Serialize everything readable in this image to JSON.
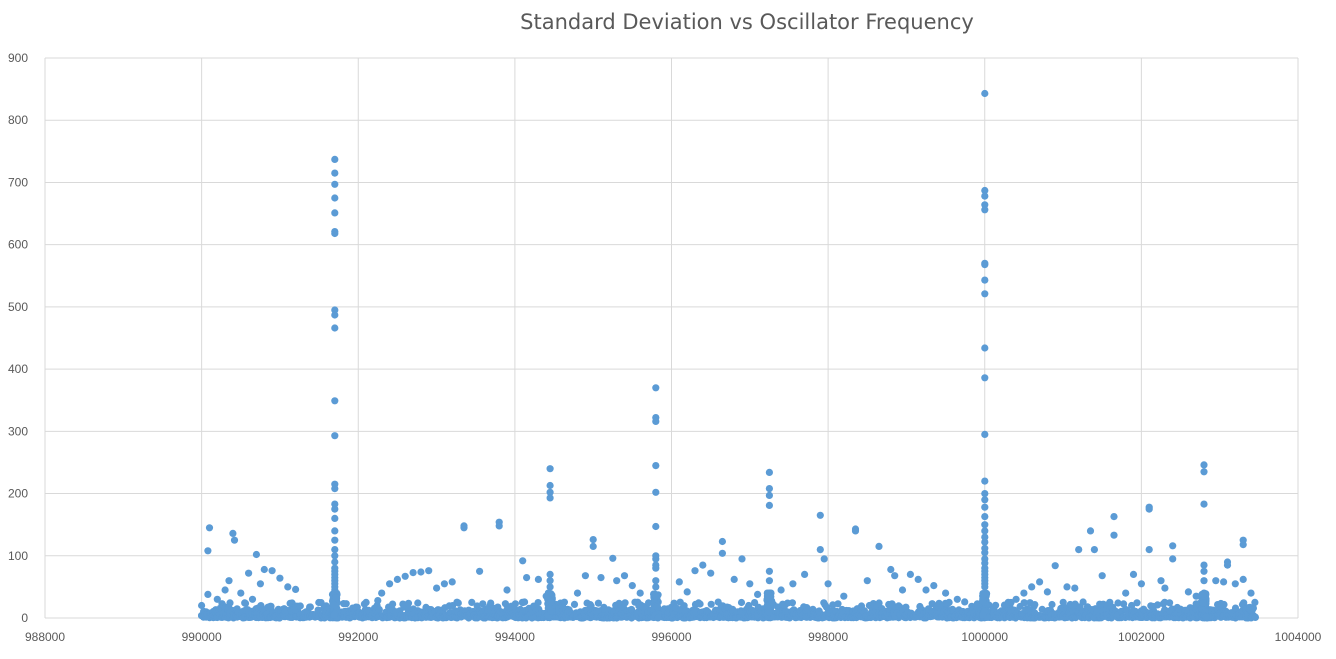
{
  "chart_data": {
    "type": "scatter",
    "title": "Standard Deviation vs Oscillator Frequency",
    "xlabel": "",
    "ylabel": "",
    "xlim": [
      988000,
      1004000
    ],
    "ylim": [
      0,
      900
    ],
    "x_ticks": [
      988000,
      990000,
      992000,
      994000,
      996000,
      998000,
      1000000,
      1002000,
      1004000
    ],
    "y_ticks": [
      0,
      100,
      200,
      300,
      400,
      500,
      600,
      700,
      800,
      900
    ],
    "grid": true,
    "legend": "none",
    "marker_color": "#5b9bd5",
    "spikes": [
      {
        "x": 991700,
        "values": [
          737,
          715,
          697,
          675,
          651,
          621,
          618,
          495,
          487,
          466,
          349,
          293,
          215,
          208,
          183,
          175,
          160,
          140,
          125,
          110,
          100,
          90,
          80,
          75,
          70,
          65,
          60,
          55,
          50,
          45
        ]
      },
      {
        "x": 1000000,
        "values": [
          843,
          687,
          678,
          664,
          656,
          570,
          568,
          543,
          521,
          434,
          386,
          295,
          220,
          200,
          190,
          178,
          163,
          150,
          140,
          130,
          122,
          112,
          105,
          95,
          88,
          80,
          75,
          70,
          65,
          60,
          55,
          50
        ]
      },
      {
        "x": 995800,
        "values": [
          370,
          322,
          316,
          245,
          202,
          147,
          100,
          95,
          85,
          80,
          60,
          50
        ]
      },
      {
        "x": 994450,
        "values": [
          240,
          213,
          202,
          193,
          70,
          60,
          50
        ]
      },
      {
        "x": 997250,
        "values": [
          234,
          208,
          197,
          181,
          75,
          60,
          40
        ]
      },
      {
        "x": 1002800,
        "values": [
          246,
          235,
          183,
          85,
          75,
          60,
          40
        ]
      }
    ],
    "points": [
      [
        990100,
        145
      ],
      [
        990080,
        108
      ],
      [
        990080,
        38
      ],
      [
        990200,
        30
      ],
      [
        990300,
        45
      ],
      [
        990350,
        60
      ],
      [
        990400,
        136
      ],
      [
        990420,
        125
      ],
      [
        990500,
        40
      ],
      [
        990600,
        72
      ],
      [
        990700,
        102
      ],
      [
        990800,
        78
      ],
      [
        990900,
        76
      ],
      [
        991000,
        64
      ],
      [
        991100,
        50
      ],
      [
        991200,
        46
      ],
      [
        990650,
        30
      ],
      [
        990750,
        55
      ],
      [
        992100,
        25
      ],
      [
        992250,
        28
      ],
      [
        992300,
        40
      ],
      [
        992400,
        55
      ],
      [
        992500,
        62
      ],
      [
        992600,
        67
      ],
      [
        992700,
        73
      ],
      [
        992800,
        74
      ],
      [
        992900,
        76
      ],
      [
        993000,
        48
      ],
      [
        993100,
        55
      ],
      [
        993200,
        58
      ],
      [
        993350,
        148
      ],
      [
        993350,
        145
      ],
      [
        993450,
        25
      ],
      [
        993550,
        75
      ],
      [
        993800,
        154
      ],
      [
        993800,
        148
      ],
      [
        993900,
        45
      ],
      [
        994100,
        92
      ],
      [
        994150,
        65
      ],
      [
        994300,
        62
      ],
      [
        994400,
        35
      ],
      [
        994800,
        40
      ],
      [
        994900,
        68
      ],
      [
        995000,
        126
      ],
      [
        995000,
        115
      ],
      [
        995100,
        65
      ],
      [
        995250,
        96
      ],
      [
        995300,
        60
      ],
      [
        995400,
        68
      ],
      [
        995500,
        52
      ],
      [
        995600,
        40
      ],
      [
        996100,
        58
      ],
      [
        996200,
        42
      ],
      [
        996300,
        76
      ],
      [
        996400,
        85
      ],
      [
        996500,
        72
      ],
      [
        996650,
        123
      ],
      [
        996650,
        104
      ],
      [
        996800,
        62
      ],
      [
        996900,
        95
      ],
      [
        997000,
        55
      ],
      [
        997100,
        38
      ],
      [
        997400,
        45
      ],
      [
        997550,
        55
      ],
      [
        997700,
        70
      ],
      [
        997900,
        165
      ],
      [
        997900,
        110
      ],
      [
        997950,
        95
      ],
      [
        998000,
        55
      ],
      [
        998200,
        35
      ],
      [
        998350,
        143
      ],
      [
        998350,
        140
      ],
      [
        998500,
        60
      ],
      [
        998650,
        115
      ],
      [
        998800,
        78
      ],
      [
        998850,
        68
      ],
      [
        998950,
        45
      ],
      [
        999050,
        70
      ],
      [
        999150,
        62
      ],
      [
        999250,
        45
      ],
      [
        999350,
        52
      ],
      [
        999500,
        40
      ],
      [
        999650,
        30
      ],
      [
        1000300,
        25
      ],
      [
        1000400,
        30
      ],
      [
        1000500,
        40
      ],
      [
        1000600,
        50
      ],
      [
        1000700,
        58
      ],
      [
        1000800,
        42
      ],
      [
        1000900,
        84
      ],
      [
        1001050,
        50
      ],
      [
        1001150,
        48
      ],
      [
        1001200,
        110
      ],
      [
        1001350,
        140
      ],
      [
        1001400,
        110
      ],
      [
        1001500,
        68
      ],
      [
        1001650,
        163
      ],
      [
        1001650,
        133
      ],
      [
        1001800,
        40
      ],
      [
        1001900,
        70
      ],
      [
        1002000,
        55
      ],
      [
        1002100,
        178
      ],
      [
        1002100,
        175
      ],
      [
        1002100,
        110
      ],
      [
        1002250,
        60
      ],
      [
        1002300,
        48
      ],
      [
        1002400,
        116
      ],
      [
        1002400,
        95
      ],
      [
        1002600,
        42
      ],
      [
        1002700,
        35
      ],
      [
        1002950,
        60
      ],
      [
        1003050,
        58
      ],
      [
        1003100,
        90
      ],
      [
        1003100,
        85
      ],
      [
        1003200,
        55
      ],
      [
        1003300,
        125
      ],
      [
        1003300,
        118
      ],
      [
        1003300,
        62
      ],
      [
        1003400,
        40
      ],
      [
        1003450,
        25
      ]
    ]
  }
}
